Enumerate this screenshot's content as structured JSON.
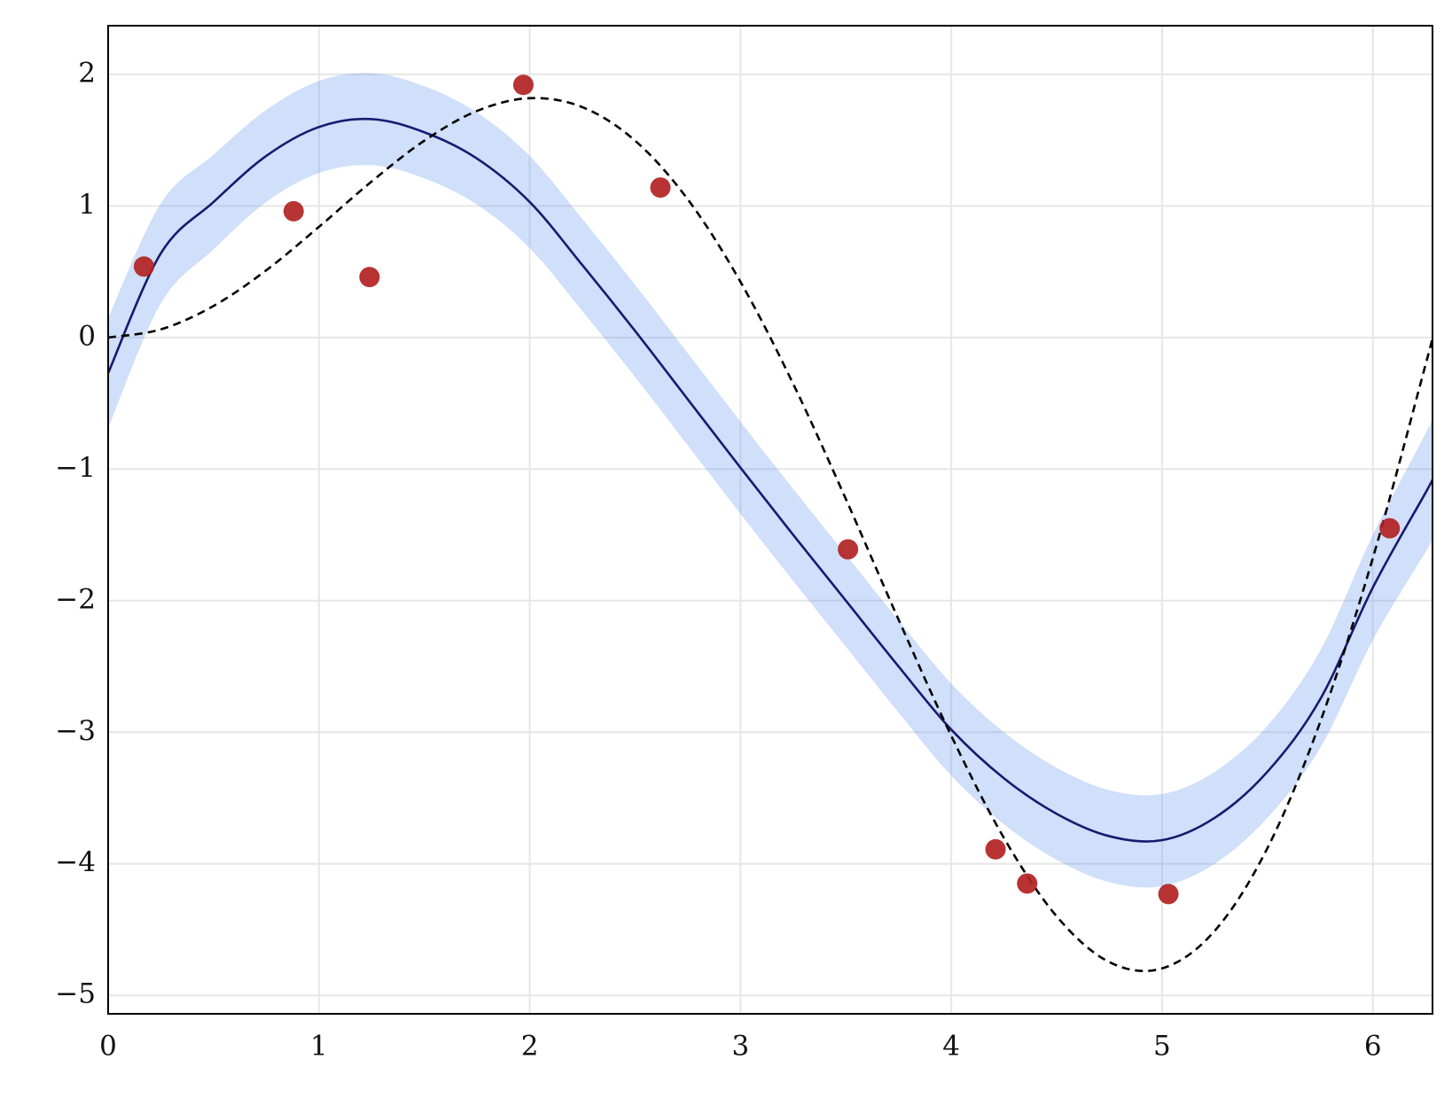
{
  "chart_data": {
    "type": "line",
    "x": [
      0,
      0.25,
      0.5,
      0.75,
      1,
      1.25,
      1.5,
      1.75,
      2,
      2.25,
      2.5,
      2.75,
      3,
      3.25,
      3.5,
      3.75,
      4,
      4.25,
      4.5,
      4.75,
      5,
      5.25,
      5.5,
      5.75,
      6,
      6.25,
      6.283
    ],
    "series": [
      {
        "color": "#191970",
        "band_color": "#6495ed",
        "values": [
          -0.27,
          0.64,
          1.03,
          1.38,
          1.6,
          1.66,
          1.56,
          1.36,
          1.03,
          0.55,
          0.05,
          -0.47,
          -0.99,
          -1.5,
          -2.0,
          -2.5,
          -2.98,
          -3.35,
          -3.62,
          -3.79,
          -3.82,
          -3.65,
          -3.3,
          -2.75,
          -1.9,
          -1.18,
          -1.08
        ],
        "lower": [
          -0.69,
          0.26,
          0.67,
          1.03,
          1.25,
          1.31,
          1.21,
          1.01,
          0.68,
          0.2,
          -0.3,
          -0.82,
          -1.34,
          -1.85,
          -2.35,
          -2.85,
          -3.33,
          -3.7,
          -3.97,
          -4.14,
          -4.17,
          -4.0,
          -3.65,
          -3.12,
          -2.3,
          -1.63,
          -1.54
        ],
        "upper": [
          0.15,
          1.02,
          1.39,
          1.73,
          1.95,
          2.01,
          1.91,
          1.71,
          1.38,
          0.9,
          0.4,
          -0.12,
          -0.64,
          -1.15,
          -1.65,
          -2.15,
          -2.63,
          -3.0,
          -3.27,
          -3.44,
          -3.47,
          -3.3,
          -2.95,
          -2.38,
          -1.5,
          -0.73,
          -0.62
        ]
      },
      {
        "color": "#000000",
        "dashed": true,
        "values": [
          0,
          0.062,
          0.24,
          0.511,
          0.841,
          1.186,
          1.496,
          1.722,
          1.819,
          1.751,
          1.496,
          1.05,
          0.423,
          -0.352,
          -1.228,
          -2.144,
          -3.027,
          -3.804,
          -4.399,
          -4.747,
          -4.795,
          -4.509,
          -3.88,
          -2.923,
          -1.676,
          -0.207,
          0
        ]
      }
    ],
    "points": {
      "type": "scatter",
      "color": "#b22222",
      "x": [
        0.17,
        0.88,
        1.24,
        1.97,
        2.62,
        3.51,
        4.21,
        4.36,
        5.03,
        6.08
      ],
      "values": [
        0.54,
        0.96,
        0.46,
        1.92,
        1.14,
        -1.61,
        -3.89,
        -4.15,
        -4.23,
        -1.45
      ]
    },
    "xlim": [
      0,
      6.283
    ],
    "ylim": [
      -5.14,
      2.37
    ],
    "xticks": [
      0,
      1,
      2,
      3,
      4,
      5,
      6
    ],
    "yticks": [
      {
        "value": -5,
        "label": "−5"
      },
      {
        "value": -4,
        "label": "−4"
      },
      {
        "value": -3,
        "label": "−3"
      },
      {
        "value": -2,
        "label": "−2"
      },
      {
        "value": -1,
        "label": "−1"
      },
      0,
      1,
      2
    ],
    "grid": true
  }
}
